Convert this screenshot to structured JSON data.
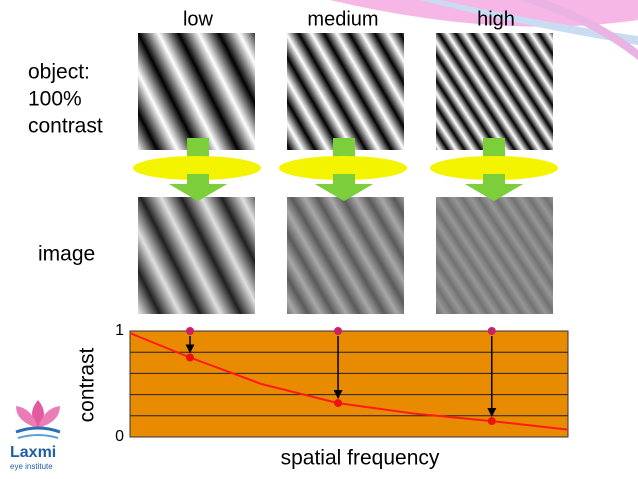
{
  "columns": [
    "low",
    "medium",
    "high"
  ],
  "object_label": [
    "object:",
    "100%",
    "contrast"
  ],
  "image_label": "image",
  "logo": {
    "name": "Laxmi",
    "subtitle": "eye institute"
  },
  "chart_data": {
    "type": "line",
    "xlabel": "spatial frequency",
    "ylabel": "contrast",
    "xlim": [
      0,
      1
    ],
    "ylim": [
      0,
      1
    ],
    "yticks": [
      0,
      1
    ],
    "gridlines": [
      0.2,
      0.4,
      0.6,
      0.8
    ],
    "background": "#e98b00",
    "series": [
      {
        "color": "#ff1a1a",
        "x": [
          0,
          0.137,
          0.3,
          0.475,
          0.65,
          0.826,
          1
        ],
        "values": [
          0.98,
          0.75,
          0.5,
          0.32,
          0.22,
          0.15,
          0.07
        ]
      },
      {
        "color": "#cc1f6a",
        "marker": true,
        "x": [
          0.137,
          0.475,
          0.826
        ],
        "values": [
          1,
          1,
          1
        ]
      },
      {
        "color": "#ee1111",
        "marker": true,
        "x": [
          0.137,
          0.475,
          0.826
        ],
        "values": [
          0.75,
          0.32,
          0.15
        ]
      }
    ]
  }
}
